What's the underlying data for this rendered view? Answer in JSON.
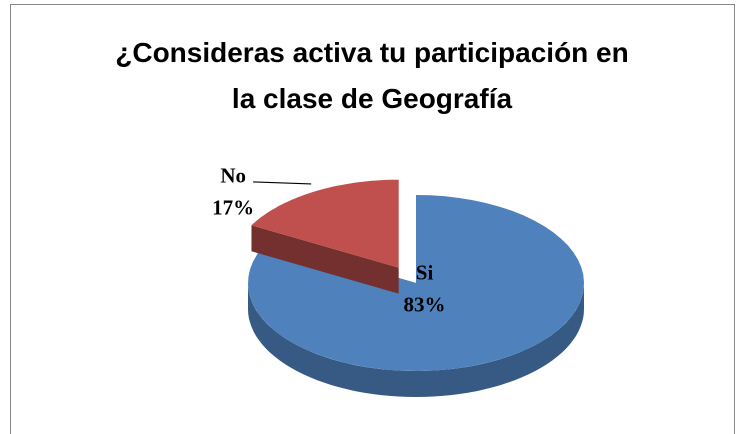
{
  "chart_data": {
    "type": "pie3d",
    "title": "¿Consideras activa tu participación en la clase de Geografía",
    "categories": [
      "Si",
      "No"
    ],
    "values": [
      83,
      17
    ],
    "value_labels": [
      "83%",
      "17%"
    ],
    "colors": [
      "#4f81bd",
      "#c0504d"
    ]
  }
}
